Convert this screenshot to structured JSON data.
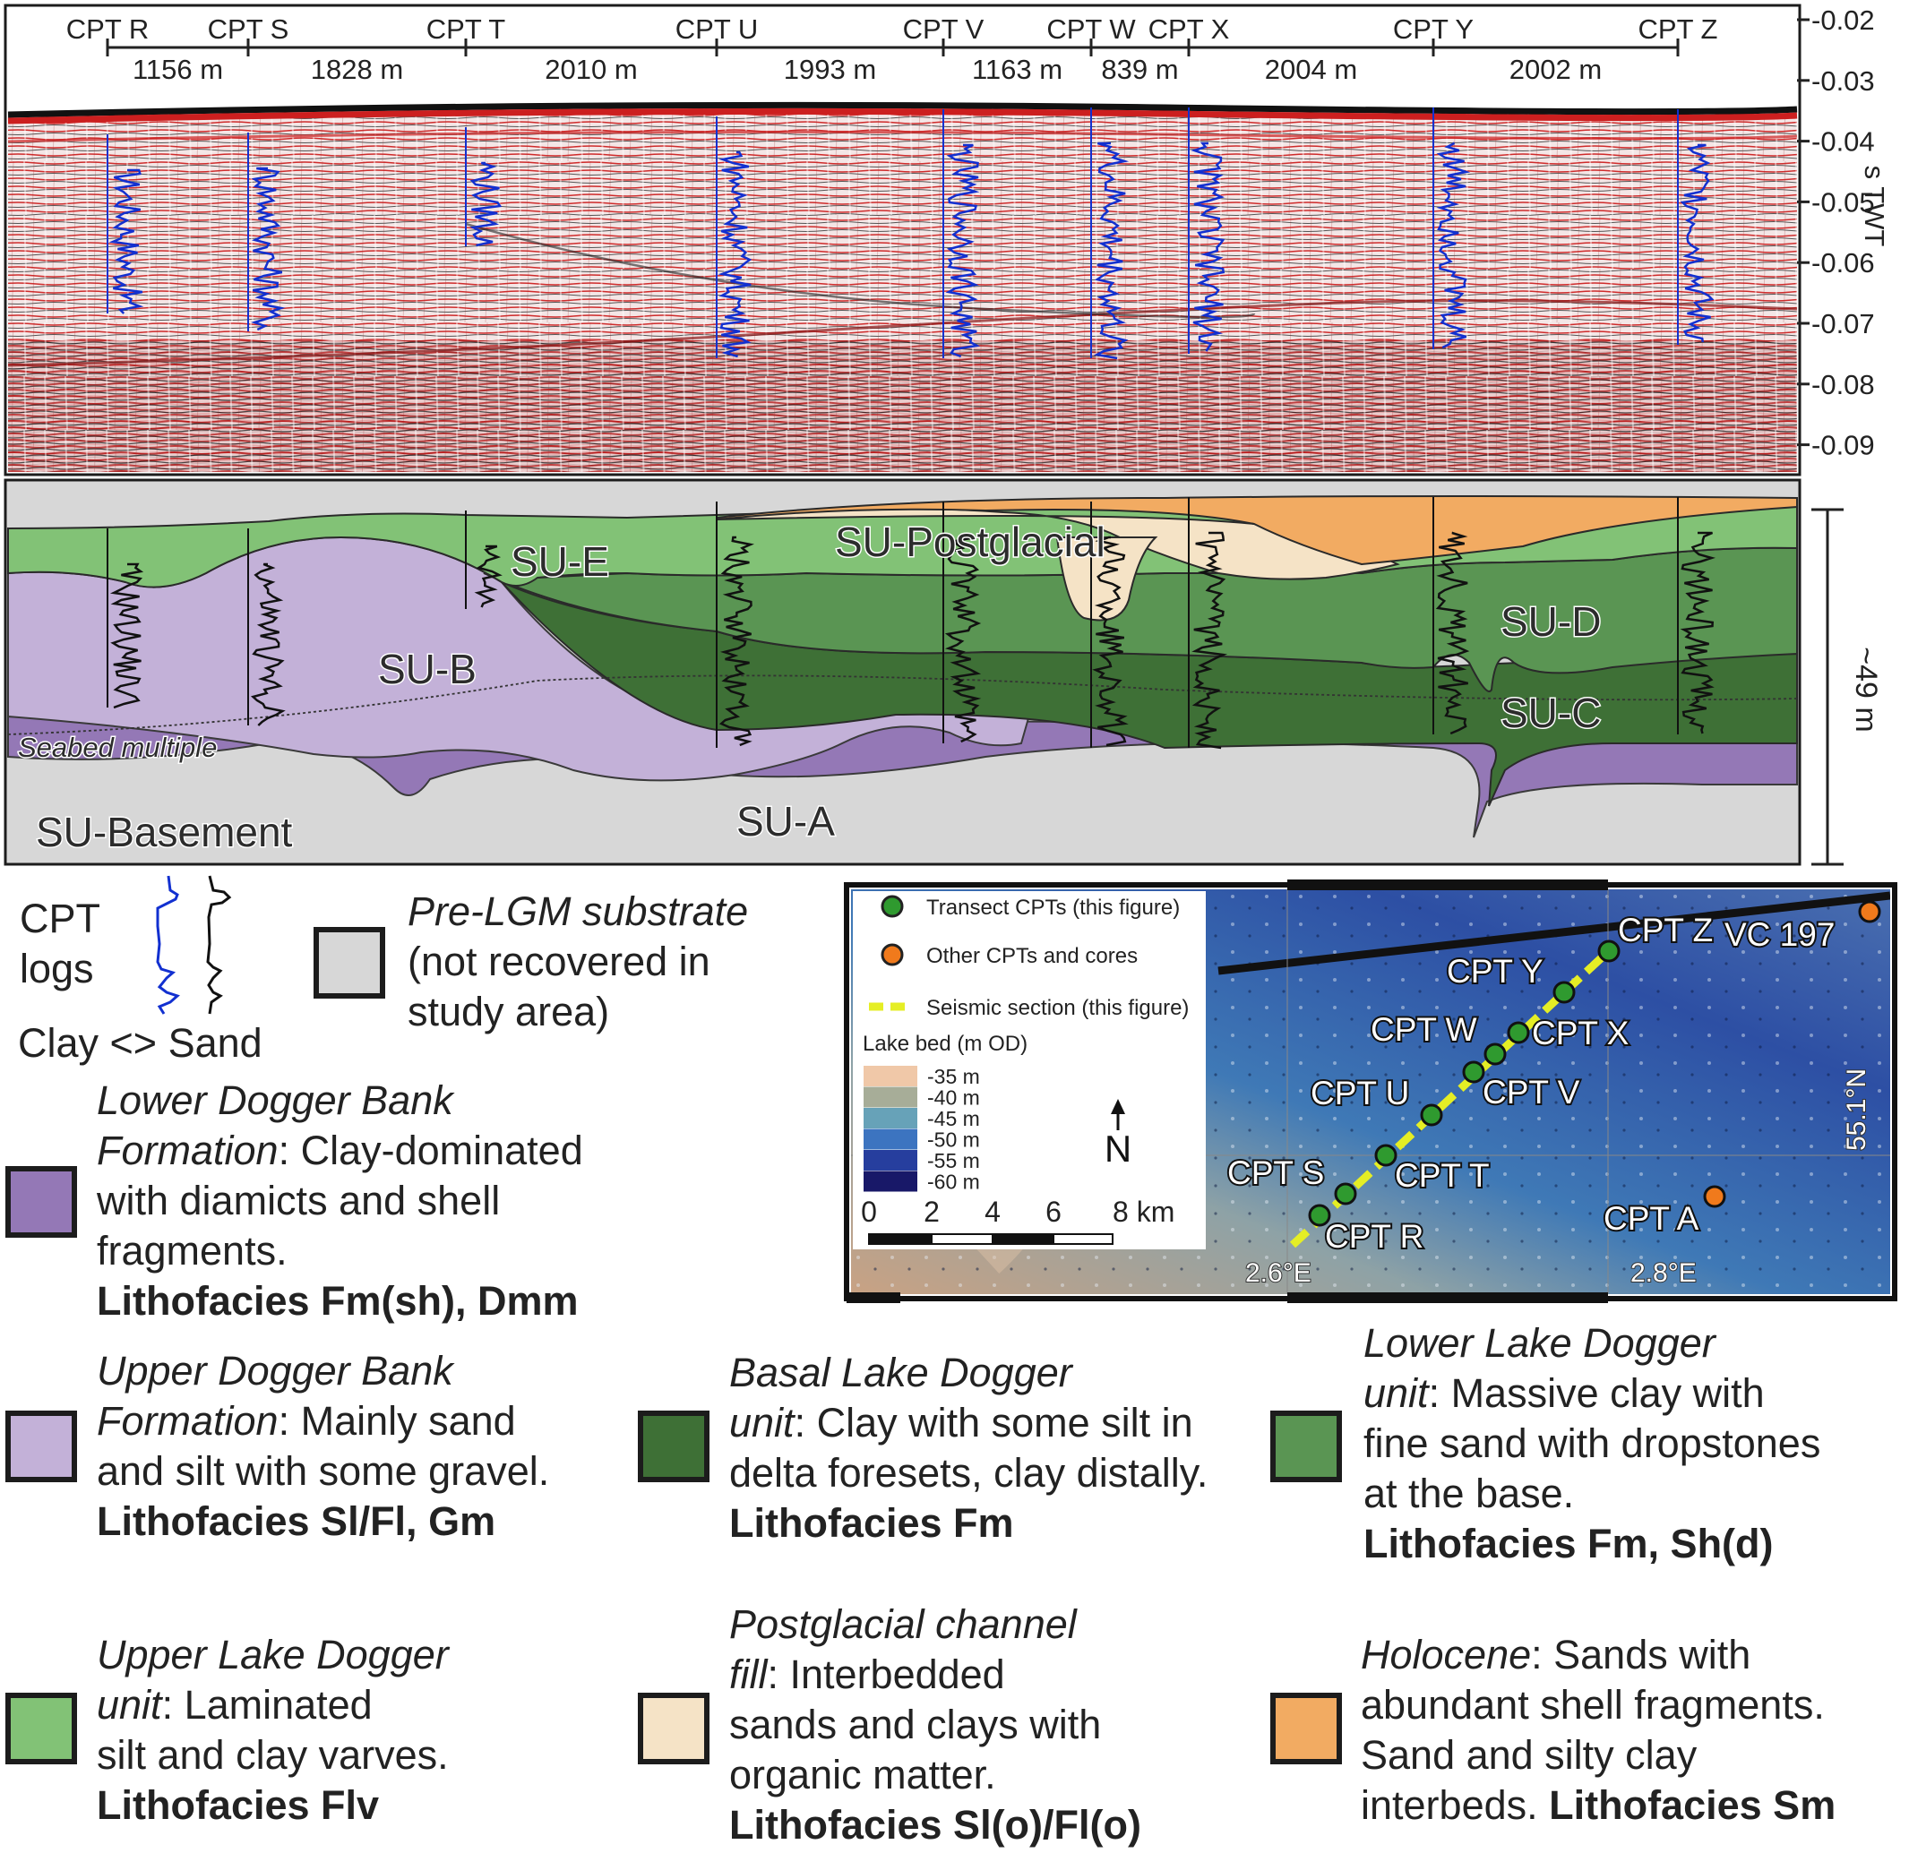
{
  "section": {
    "cpts": [
      {
        "name": "CPT R"
      },
      {
        "name": "CPT S"
      },
      {
        "name": "CPT T"
      },
      {
        "name": "CPT U"
      },
      {
        "name": "CPT V"
      },
      {
        "name": "CPT W"
      },
      {
        "name": "CPT X"
      },
      {
        "name": "CPT Y"
      },
      {
        "name": "CPT Z"
      }
    ],
    "distances": [
      "1156 m",
      "1828 m",
      "2010 m",
      "1993 m",
      "1163 m",
      "839 m",
      "2004 m",
      "2002 m"
    ],
    "twt_ticks": [
      "-0.02",
      "-0.03",
      "-0.04",
      "-0.05",
      "-0.06",
      "-0.07",
      "-0.08",
      "-0.09"
    ],
    "twt_label": "s TWT",
    "depth_label": "~49 m"
  },
  "units": {
    "su_e": "SU-E",
    "su_postglacial": "SU-Postglacial",
    "su_d": "SU-D",
    "su_b": "SU-B",
    "su_c": "SU-C",
    "seabed_multiple": "Seabed multiple",
    "su_basement": "SU-Basement",
    "su_a": "SU-A"
  },
  "colors": {
    "su_a": "#9478b6",
    "su_b": "#c3b1d8",
    "su_c": "#3e7036",
    "su_d": "#5a9553",
    "su_e": "#82c276",
    "postglacial": "#f5e3c6",
    "holocene": "#f2ab62",
    "basement": "#d7d7d7",
    "cpt_blue": "#1230d0",
    "seismic_red": "#cc1f1f"
  },
  "map": {
    "legend_transect": "Transect CPTs (this figure)",
    "legend_other": "Other CPTs and cores",
    "legend_seismic": "Seismic section (this figure)",
    "lakebed_title": "Lake bed (m OD)",
    "bins": [
      {
        "label": "-35 m",
        "color": "#f0c8a8"
      },
      {
        "label": "-40 m",
        "color": "#a7ad98"
      },
      {
        "label": "-45 m",
        "color": "#67a2b8"
      },
      {
        "label": "-50 m",
        "color": "#3c74c0"
      },
      {
        "label": "-55 m",
        "color": "#263e9e"
      },
      {
        "label": "-60 m",
        "color": "#181868"
      }
    ],
    "north": "N",
    "scale_ticks": [
      "0",
      "2",
      "4",
      "6",
      "8 km"
    ],
    "lat": "55.1°N",
    "lon1": "2.6°E",
    "lon2": "2.8°E",
    "labels": {
      "cpt_z": "CPT Z",
      "vc197": "VC 197",
      "cpt_y": "CPT Y",
      "cpt_w": "CPT W",
      "cpt_x": "CPT X",
      "cpt_u": "CPT U",
      "cpt_v": "CPT V",
      "cpt_s": "CPT S",
      "cpt_t": "CPT T",
      "cpt_r": "CPT R",
      "cpt_a": "CPT A"
    }
  },
  "legend": {
    "cpt_logs": [
      "CPT",
      "logs"
    ],
    "clay_sand": "Clay <> Sand",
    "pre_lgm": {
      "title": "Pre-LGM substrate",
      "lines": [
        "(not recovered in",
        "study area)"
      ]
    },
    "lower_dogger": {
      "l1": "Lower Dogger Bank",
      "l2a": "Formation",
      "l2b": ": Clay-dominated",
      "l3": "with diamicts and shell",
      "l4": "fragments.",
      "lith": "Lithofacies Fm(sh), Dmm"
    },
    "upper_dogger": {
      "l1": "Upper Dogger Bank",
      "l2a": "Formation",
      "l2b": ": Mainly sand",
      "l3": "and silt with some gravel.",
      "lith": "Lithofacies Sl/Fl, Gm"
    },
    "basal_lake": {
      "l1": "Basal Lake Dogger",
      "l2a": "unit",
      "l2b": ": Clay with some silt in",
      "l3": "delta foresets, clay distally.",
      "lith": "Lithofacies Fm"
    },
    "lower_lake": {
      "l1": "Lower Lake Dogger",
      "l2a": "unit",
      "l2b": ": Massive clay with",
      "l3": "fine sand with dropstones",
      "l4": "at the base.",
      "lith": "Lithofacies Fm, Sh(d)"
    },
    "upper_lake": {
      "l1": "Upper Lake Dogger",
      "l2a": "unit",
      "l2b": ": Laminated",
      "l3": "silt and clay varves.",
      "lith": "Lithofacies Flv"
    },
    "postglacial": {
      "l1": "Postglacial channel",
      "l2a": "fill",
      "l2b": ": Interbedded",
      "l3": "sands and clays with",
      "l4": "organic matter.",
      "lith": "Lithofacies Sl(o)/Fl(o)"
    },
    "holocene": {
      "l1a": "Holocene",
      "l1b": ": Sands with",
      "l2": "abundant shell fragments.",
      "l3": "Sand and silty clay",
      "l4a": "interbeds. ",
      "lith": "Lithofacies Sm"
    }
  }
}
